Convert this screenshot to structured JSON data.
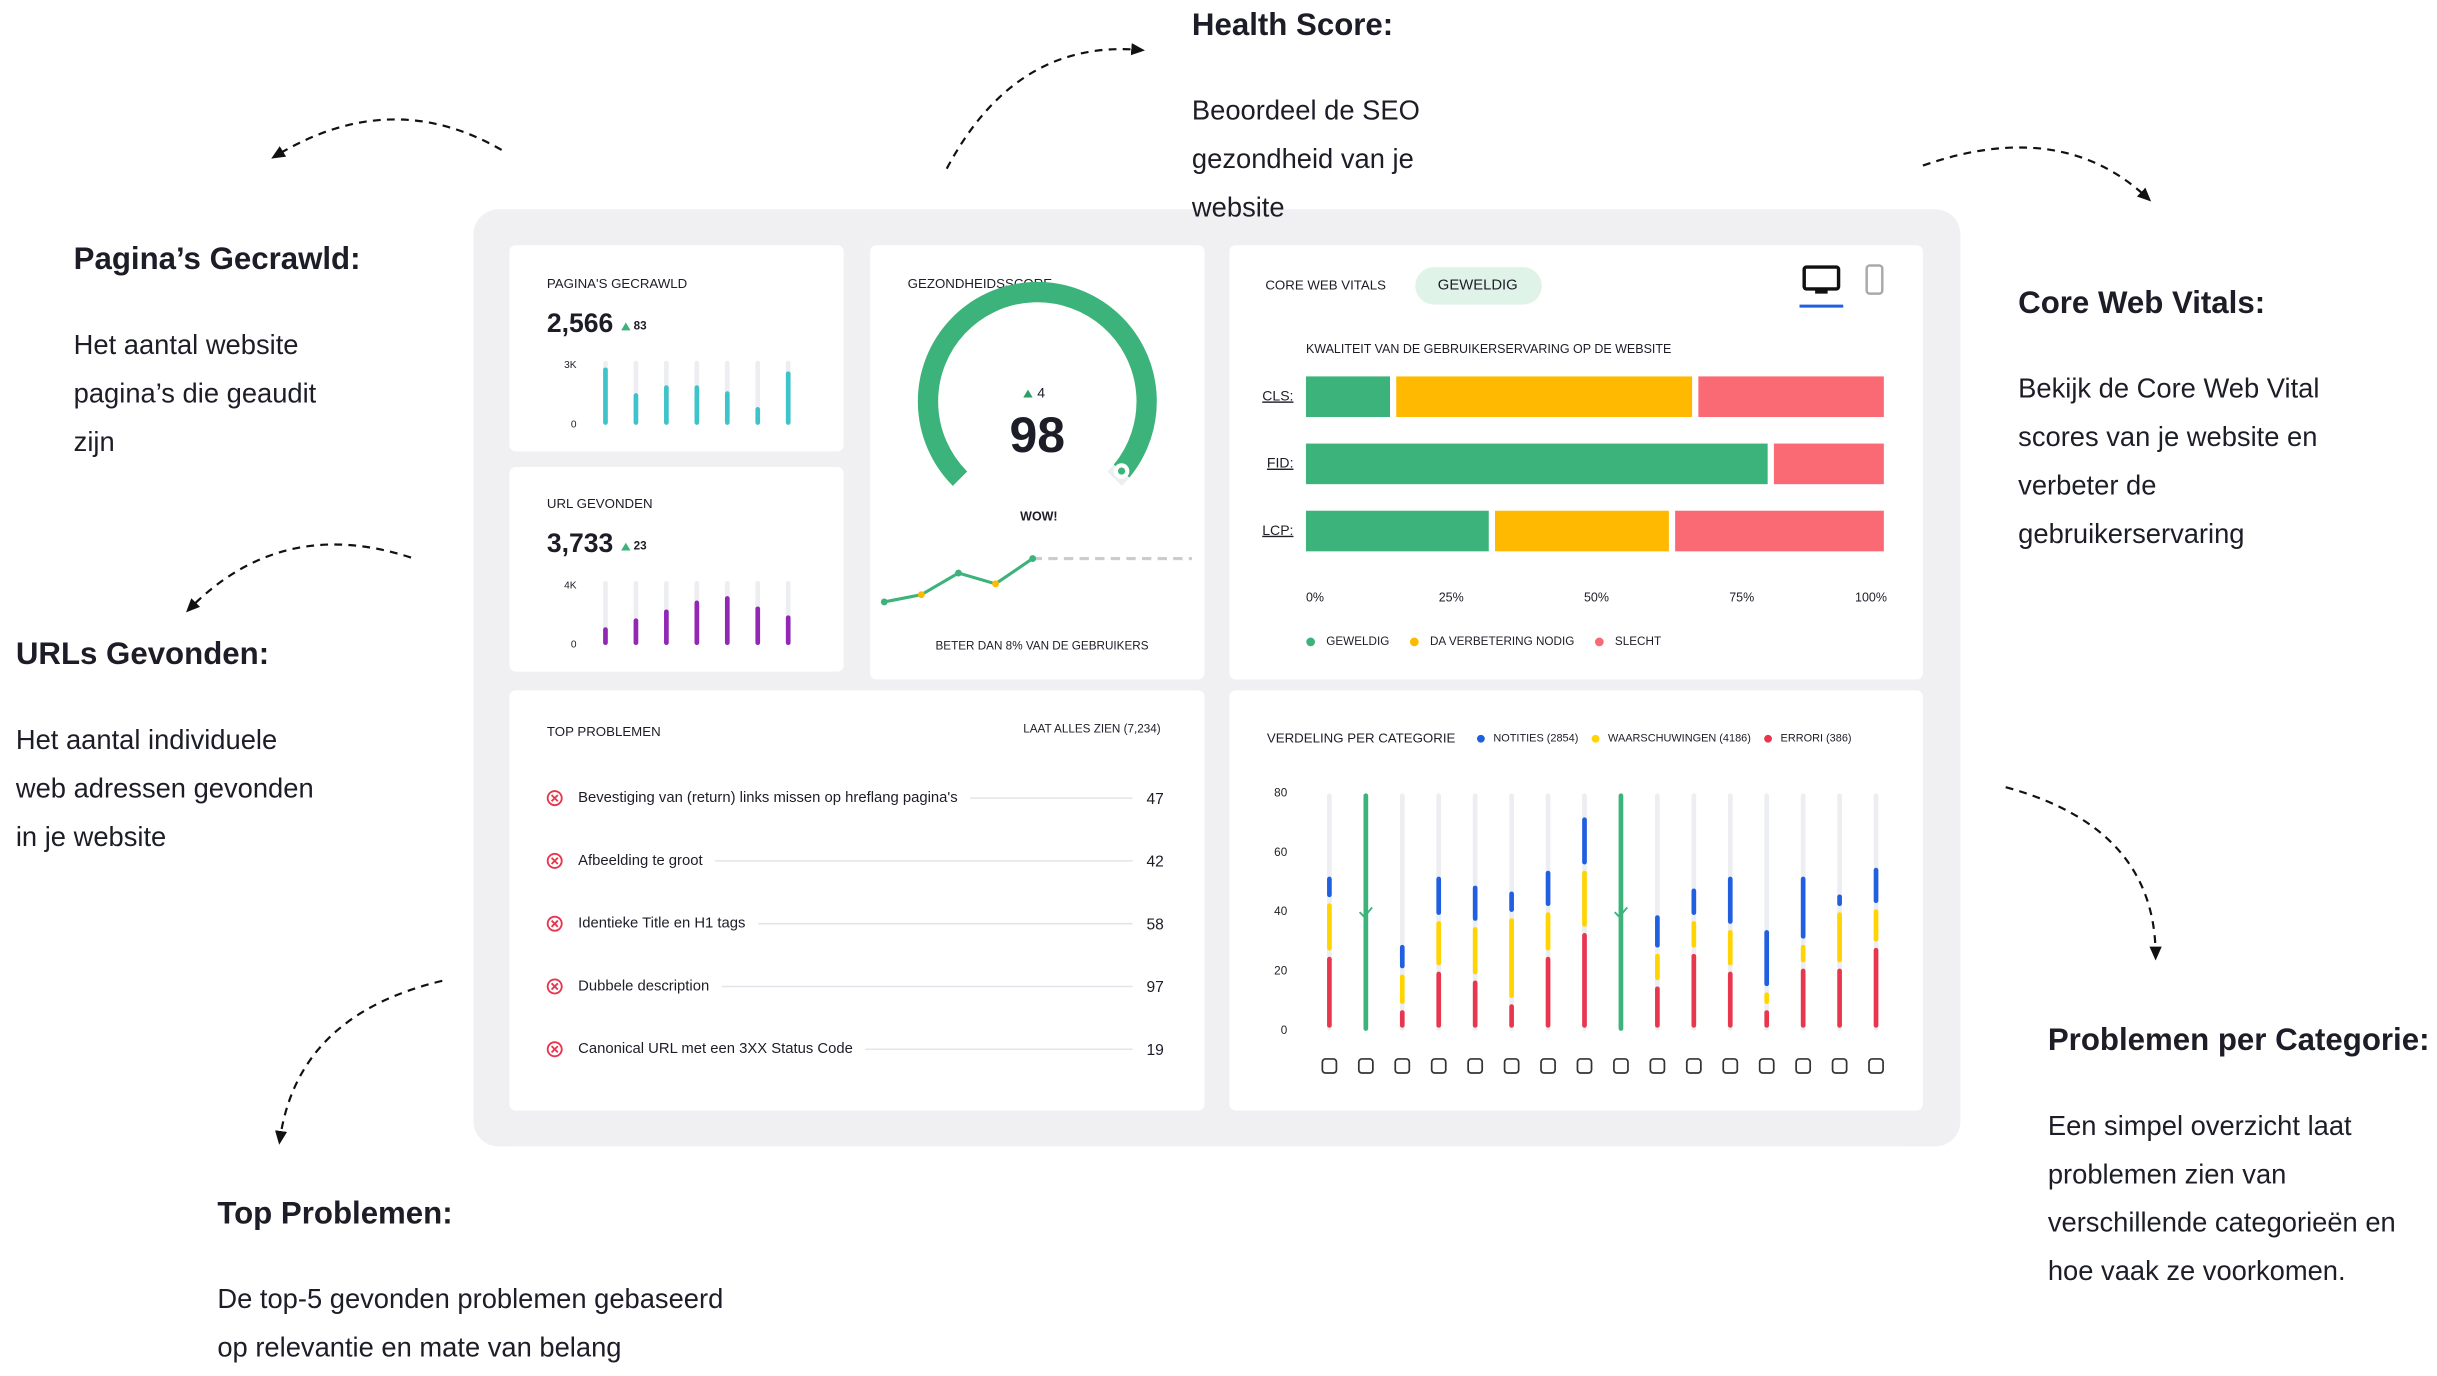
{
  "annotations": [
    {
      "title": "Pagina’s Gecrawld:",
      "body": [
        "Het aantal website",
        "pagina’s die geaudit",
        "zijn"
      ]
    },
    {
      "title": "URLs Gevonden:",
      "body": [
        "Het aantal individuele",
        "web adressen gevonden",
        "in je website"
      ]
    },
    {
      "title": "Top Problemen:",
      "body": [
        "De top-5 gevonden problemen gebaseerd",
        "op relevantie en mate van belang"
      ]
    },
    {
      "title": "Health Score:",
      "body": [
        "Beoordeel de SEO",
        "gezondheid van je",
        "website"
      ]
    },
    {
      "title": "Core Web Vitals:",
      "body": [
        "Bekijk de Core Web Vital",
        "scores van je website en",
        "verbeter de",
        "gebruikerservaring"
      ]
    },
    {
      "title": "Problemen per Categorie:",
      "body": [
        "Een simpel overzicht laat",
        "problemen zien van",
        "verschillende categorieën en",
        "hoe vaak ze voorkomen."
      ]
    }
  ],
  "pages_crawled": {
    "label": "PAGINA'S GECRAWLD",
    "value": "2,566",
    "change": "83",
    "ylim": [
      0,
      3000
    ],
    "yticks": [
      {
        "value": 3000,
        "label": "3K"
      },
      0
    ],
    "bars": [
      2900,
      1600,
      2000,
      2000,
      1700,
      900,
      2700
    ],
    "color": "#3ec3cb"
  },
  "urls_found": {
    "label": "URL GEVONDEN",
    "value": "3,733",
    "change": "23",
    "ylim": [
      0,
      4000
    ],
    "yticks": [
      {
        "value": 4000,
        "label": "4K"
      },
      0
    ],
    "bars": [
      1200,
      1800,
      2400,
      3000,
      3300,
      2600,
      2000
    ],
    "color": "#9127b3"
  },
  "health_score": {
    "label": "GEZONDHEIDSSCORE",
    "score": 98,
    "range": [
      0,
      100
    ],
    "change": "4",
    "rating": "WOW!",
    "trend": [
      1,
      2,
      5,
      3.5,
      7
    ],
    "trend_ylim": [
      0,
      8
    ],
    "note": "BETER DAN 8% VAN DE GEBRUIKERS",
    "color": "#3cb37a"
  },
  "core_web_vitals": {
    "title": "CORE WEB VITALS",
    "status": "GEWELDIG",
    "subtitle": "KWALITEIT VAN DE GEBRUIKERSERVARING OP DE WEBSITE",
    "categories": [
      "CLS:",
      "FID:",
      "LCP:"
    ],
    "series": [
      {
        "name": "GEWELDIG",
        "color": "#3cb37a",
        "values": [
          15,
          80,
          32
        ]
      },
      {
        "name": "DA VERBETERING NODIG",
        "color": "#ffb900",
        "values": [
          52,
          0,
          31
        ]
      },
      {
        "name": "SLECHT",
        "color": "#f96a74",
        "values": [
          33,
          20,
          37
        ]
      }
    ],
    "xlim": [
      0,
      100
    ],
    "xticks": [
      {
        "value": 0,
        "label": "0%"
      },
      {
        "value": 25,
        "label": "25%"
      },
      {
        "value": 50,
        "label": "50%"
      },
      {
        "value": 75,
        "label": "75%"
      },
      {
        "value": 100,
        "label": "100%"
      }
    ]
  },
  "top_problems": {
    "title": "TOP PROBLEMEN",
    "link": "LAAT ALLES ZIEN (7,234)",
    "rows": [
      {
        "label": "Bevestiging van (return) links missen op hreflang pagina's",
        "count": 47
      },
      {
        "label": "Afbeelding te groot",
        "count": 42
      },
      {
        "label": "Identieke Title en H1 tags",
        "count": 58
      },
      {
        "label": "Dubbele description",
        "count": 97
      },
      {
        "label": "Canonical URL met een 3XX Status Code",
        "count": 19
      }
    ]
  },
  "category_chart": {
    "type": "bar",
    "title": "VERDELING PER CATEGORIE",
    "categories": [
      null,
      null,
      null,
      null,
      null,
      null,
      null,
      null,
      null,
      null,
      null,
      null,
      null,
      null,
      null,
      null
    ],
    "series": [
      {
        "name": "NOTITIES (2854)",
        "color": "#1f5fe0",
        "values": [
          9,
          0,
          10,
          15,
          14,
          9,
          14,
          18,
          0,
          13,
          11,
          18,
          21,
          23,
          6,
          14
        ]
      },
      {
        "name": "WAARSCHUWINGEN (4186)",
        "color": "#ffd400",
        "values": [
          18,
          0,
          12,
          17,
          18,
          29,
          15,
          21,
          0,
          11,
          11,
          14,
          6,
          8,
          19,
          13
        ]
      },
      {
        "name": "ERRORI (386)",
        "color": "#e8364f",
        "values": [
          26,
          0,
          8,
          21,
          18,
          10,
          26,
          34,
          0,
          16,
          27,
          21,
          8,
          22,
          22,
          29
        ]
      }
    ],
    "ok_color": "#3cb37a",
    "ylim": [
      0,
      80
    ],
    "yticks": [
      0,
      20,
      40,
      60,
      80
    ]
  }
}
